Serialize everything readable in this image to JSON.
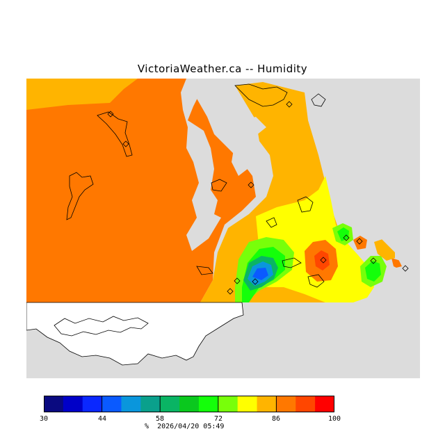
{
  "header": {
    "title": "VictoriaWeather.ca -- Humidity"
  },
  "map": {
    "land_color": "#dcdcdc",
    "no_data_color": "#ffffff",
    "coast_color": "#000000",
    "station_marker": "diamond-icon"
  },
  "legend": {
    "colors": [
      "#0a0a80",
      "#0000c8",
      "#0a28ff",
      "#0a5aff",
      "#0a96dc",
      "#0aa08c",
      "#0ab464",
      "#0ac81e",
      "#14ff0a",
      "#78ff0a",
      "#ffff00",
      "#ffb400",
      "#ff7800",
      "#ff4600",
      "#ff0000"
    ],
    "min": 30,
    "max": 100,
    "tick_labels": [
      "30",
      "44",
      "58",
      "72",
      "86",
      "100"
    ]
  },
  "footer": {
    "unit": "%",
    "timestamp": "2026/04/20 05:49"
  }
}
